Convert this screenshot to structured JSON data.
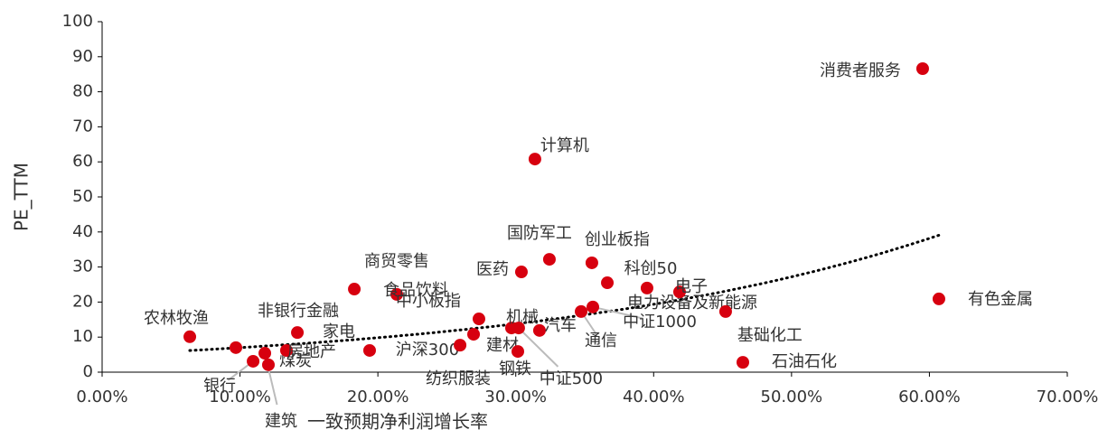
{
  "chart_data": {
    "type": "scatter",
    "x_label": "一致预期净利润增长率",
    "y_label": "PE_TTM",
    "labels": [
      "农林牧渔",
      "家电",
      "银行",
      "建筑",
      "煤炭",
      "房地产",
      "非银行金融",
      "商贸零售",
      "沪深300",
      "食品饮料",
      "纺织服装",
      "中小板指",
      "建材",
      "机械",
      "钢铁",
      "中证500",
      "医药",
      "计算机",
      "汽车",
      "国防军工",
      "通信",
      "创业板指",
      "中证1000",
      "科创50",
      "电力设备及新能源",
      "电子",
      "基础化工",
      "石油石化",
      "消费者服务",
      "有色金属"
    ],
    "x": [
      6.36,
      9.7,
      10.95,
      11.8,
      12.06,
      13.37,
      14.16,
      18.29,
      19.4,
      21.37,
      25.96,
      27.33,
      26.94,
      29.69,
      30.15,
      30.21,
      30.41,
      31.39,
      31.72,
      32.44,
      34.74,
      35.52,
      35.59,
      36.64,
      39.52,
      41.88,
      45.22,
      46.47,
      59.51,
      60.69
    ],
    "values": [
      10.1,
      7.0,
      3.1,
      5.4,
      2.1,
      6.2,
      11.3,
      23.7,
      6.2,
      22.2,
      7.7,
      15.2,
      10.8,
      12.6,
      5.9,
      12.6,
      28.6,
      60.8,
      11.9,
      32.2,
      17.3,
      31.2,
      18.6,
      25.5,
      24.0,
      22.9,
      17.3,
      2.8,
      86.6,
      20.9
    ],
    "color": "#d7000f",
    "trendline": "exponential",
    "xlim": [
      0,
      70
    ],
    "ylim": [
      0,
      100
    ],
    "xticks": [
      {
        "value": 0,
        "label": "0.00%"
      },
      {
        "value": 10,
        "label": "10.00%"
      },
      {
        "value": 20,
        "label": "20.00%"
      },
      {
        "value": 30,
        "label": "30.00%"
      },
      {
        "value": 40,
        "label": "40.00%"
      },
      {
        "value": 50,
        "label": "50.00%"
      },
      {
        "value": 60,
        "label": "60.00%"
      },
      {
        "value": 70,
        "label": "70.00%"
      }
    ],
    "yticks": [
      0,
      10,
      20,
      30,
      40,
      50,
      60,
      70,
      80,
      90,
      100
    ]
  }
}
